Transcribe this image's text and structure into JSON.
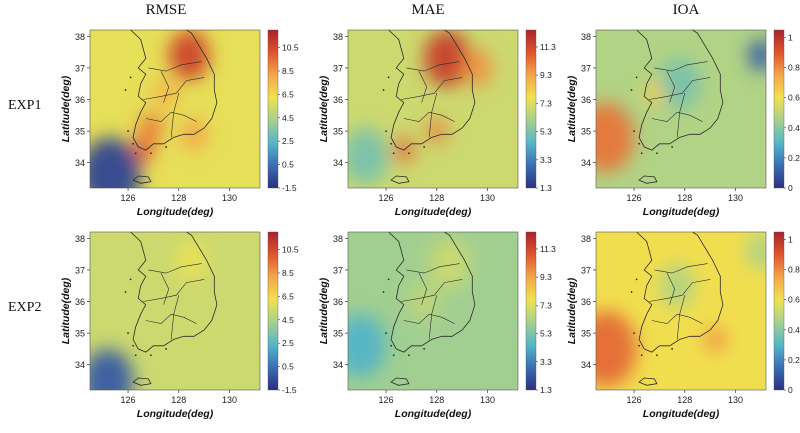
{
  "columns": [
    "RMSE",
    "MAE",
    "IOA"
  ],
  "rows": [
    "EXP1",
    "EXP2"
  ],
  "colors": {
    "scale": [
      "#2b2f7e",
      "#3a6eb3",
      "#54b7c8",
      "#a6d08e",
      "#f1e24f",
      "#f4a74a",
      "#e0542d",
      "#a8232d"
    ],
    "land_outline": "#2a2a2a"
  },
  "chart_data": [
    {
      "type": "heatmap",
      "title": "RMSE",
      "row": "EXP1",
      "xlabel": "Longitude(deg)",
      "ylabel": "Latitude(deg)",
      "x_ticks": [
        "126",
        "128",
        "130"
      ],
      "y_ticks": [
        "34",
        "35",
        "36",
        "37",
        "38"
      ],
      "xlim": [
        124.5,
        131.2
      ],
      "ylim": [
        33.2,
        38.2
      ],
      "colorbar_ticks": [
        "10.5",
        "8.5",
        "6.5",
        "4.5",
        "2.5",
        "0.5",
        "-1.5"
      ],
      "colorbar_range": [
        -1.5,
        12
      ],
      "background_level": 0.55,
      "hotspots": [
        {
          "lon": 128.4,
          "lat": 37.4,
          "value": 0.9,
          "radius": 0.8
        },
        {
          "lon": 126.9,
          "lat": 35.1,
          "value": 0.78,
          "radius": 0.5
        },
        {
          "lon": 128.6,
          "lat": 34.9,
          "value": 0.72,
          "radius": 0.5
        },
        {
          "lon": 126.6,
          "lat": 34.4,
          "value": 0.85,
          "radius": 0.4
        },
        {
          "lon": 125.3,
          "lat": 33.6,
          "value": 0.05,
          "radius": 1.2
        },
        {
          "lon": 127.5,
          "lat": 36.2,
          "value": 0.68,
          "radius": 0.5
        }
      ]
    },
    {
      "type": "heatmap",
      "title": "MAE",
      "row": "EXP1",
      "xlabel": "Longitude(deg)",
      "ylabel": "Latitude(deg)",
      "x_ticks": [
        "126",
        "128",
        "130"
      ],
      "y_ticks": [
        "34",
        "35",
        "36",
        "37",
        "38"
      ],
      "xlim": [
        124.5,
        131.2
      ],
      "ylim": [
        33.2,
        38.2
      ],
      "colorbar_ticks": [
        "11.3",
        "9.3",
        "7.3",
        "5.3",
        "3.3",
        "1.3"
      ],
      "colorbar_range": [
        1.3,
        12.5
      ],
      "background_level": 0.5,
      "hotspots": [
        {
          "lon": 128.4,
          "lat": 37.3,
          "value": 0.92,
          "radius": 0.9
        },
        {
          "lon": 129.6,
          "lat": 37.0,
          "value": 0.75,
          "radius": 0.6
        },
        {
          "lon": 126.7,
          "lat": 34.4,
          "value": 0.82,
          "radius": 0.4
        },
        {
          "lon": 128.0,
          "lat": 35.0,
          "value": 0.78,
          "radius": 0.4
        },
        {
          "lon": 125.2,
          "lat": 34.2,
          "value": 0.35,
          "radius": 0.9
        }
      ]
    },
    {
      "type": "heatmap",
      "title": "IOA",
      "row": "EXP1",
      "xlabel": "Longitude(deg)",
      "ylabel": "Latitude(deg)",
      "x_ticks": [
        "126",
        "128",
        "130"
      ],
      "y_ticks": [
        "34",
        "35",
        "36",
        "37",
        "38"
      ],
      "xlim": [
        124.5,
        131.2
      ],
      "ylim": [
        33.2,
        38.2
      ],
      "colorbar_ticks": [
        "1",
        "0.8",
        "0.6",
        "0.4",
        "0.2",
        "0"
      ],
      "colorbar_range": [
        0,
        1.05
      ],
      "background_level": 0.45,
      "hotspots": [
        {
          "lon": 124.9,
          "lat": 34.8,
          "value": 0.8,
          "radius": 1.1
        },
        {
          "lon": 131.0,
          "lat": 37.4,
          "value": 0.1,
          "radius": 0.5
        },
        {
          "lon": 127.8,
          "lat": 36.5,
          "value": 0.35,
          "radius": 0.8
        },
        {
          "lon": 126.8,
          "lat": 36.2,
          "value": 0.62,
          "radius": 0.4
        }
      ]
    },
    {
      "type": "heatmap",
      "title": "RMSE",
      "row": "EXP2",
      "xlabel": "Longitude(deg)",
      "ylabel": "Latitude(deg)",
      "x_ticks": [
        "126",
        "128",
        "130"
      ],
      "y_ticks": [
        "34",
        "35",
        "36",
        "37",
        "38"
      ],
      "xlim": [
        124.5,
        131.2
      ],
      "ylim": [
        33.2,
        38.2
      ],
      "colorbar_ticks": [
        "10.5",
        "8.5",
        "6.5",
        "4.5",
        "2.5",
        "0.5",
        "-1.5"
      ],
      "colorbar_range": [
        -1.5,
        12
      ],
      "background_level": 0.5,
      "hotspots": [
        {
          "lon": 125.2,
          "lat": 33.5,
          "value": 0.1,
          "radius": 1.0
        },
        {
          "lon": 128.5,
          "lat": 37.3,
          "value": 0.56,
          "radius": 0.6
        }
      ]
    },
    {
      "type": "heatmap",
      "title": "MAE",
      "row": "EXP2",
      "xlabel": "Longitude(deg)",
      "ylabel": "Latitude(deg)",
      "x_ticks": [
        "126",
        "128",
        "130"
      ],
      "y_ticks": [
        "34",
        "35",
        "36",
        "37",
        "38"
      ],
      "xlim": [
        124.5,
        131.2
      ],
      "ylim": [
        33.2,
        38.2
      ],
      "colorbar_ticks": [
        "11.3",
        "9.3",
        "7.3",
        "5.3",
        "3.3",
        "1.3"
      ],
      "colorbar_range": [
        1.3,
        12.5
      ],
      "background_level": 0.42,
      "hotspots": [
        {
          "lon": 125.0,
          "lat": 34.6,
          "value": 0.28,
          "radius": 1.0
        },
        {
          "lon": 128.5,
          "lat": 37.2,
          "value": 0.5,
          "radius": 0.8
        },
        {
          "lon": 127.5,
          "lat": 36.0,
          "value": 0.48,
          "radius": 0.6
        }
      ]
    },
    {
      "type": "heatmap",
      "title": "IOA",
      "row": "EXP2",
      "xlabel": "Longitude(deg)",
      "ylabel": "Latitude(deg)",
      "x_ticks": [
        "126",
        "128",
        "130"
      ],
      "y_ticks": [
        "34",
        "35",
        "36",
        "37",
        "38"
      ],
      "xlim": [
        124.5,
        131.2
      ],
      "ylim": [
        33.2,
        38.2
      ],
      "colorbar_ticks": [
        "1",
        "0.8",
        "0.6",
        "0.4",
        "0.2",
        "0"
      ],
      "colorbar_range": [
        0,
        1.05
      ],
      "background_level": 0.58,
      "hotspots": [
        {
          "lon": 124.9,
          "lat": 34.5,
          "value": 0.82,
          "radius": 1.2
        },
        {
          "lon": 129.2,
          "lat": 34.8,
          "value": 0.75,
          "radius": 0.4
        },
        {
          "lon": 131.0,
          "lat": 37.6,
          "value": 0.45,
          "radius": 0.6
        },
        {
          "lon": 127.7,
          "lat": 36.5,
          "value": 0.45,
          "radius": 0.7
        }
      ]
    }
  ]
}
